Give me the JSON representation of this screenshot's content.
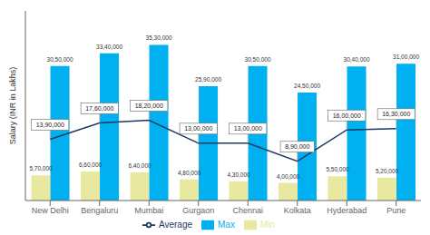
{
  "chart_data": {
    "type": "bar",
    "ylabel": "Salary (INR in Lakhs)",
    "categories": [
      "New Delhi",
      "Bengaluru",
      "Mumbai",
      "Gurgaon",
      "Chennai",
      "Kolkata",
      "Hyderabad",
      "Pune"
    ],
    "series": [
      {
        "name": "Min",
        "type": "bar",
        "color": "#e8e8a0",
        "values": [
          570000,
          660000,
          640000,
          480000,
          430000,
          400000,
          550000,
          520000
        ],
        "value_labels": [
          "5,70,000",
          "6,60,000",
          "6,40,000",
          "4,80,000",
          "4,30,000",
          "4,00,000",
          "5,50,000",
          "5,20,000"
        ]
      },
      {
        "name": "Max",
        "type": "bar",
        "color": "#00b0f0",
        "values": [
          3050000,
          3340000,
          3530000,
          2590000,
          3050000,
          2450000,
          3040000,
          3100000
        ],
        "value_labels": [
          "30,50,000",
          "33,40,000",
          "35,30,000",
          "25,90,000",
          "30,50,000",
          "24,50,000",
          "30,40,000",
          "31,00,000"
        ]
      },
      {
        "name": "Average",
        "type": "line",
        "color": "#1f3864",
        "values": [
          1390000,
          1760000,
          1820000,
          1300000,
          1300000,
          890000,
          1600000,
          1630000
        ],
        "value_labels": [
          "13,90,000",
          "17,60,000",
          "18,20,000",
          "13,00,000",
          "13,00,000",
          "8,90,000",
          "16,00,000",
          "16,30,000"
        ]
      }
    ],
    "ylim": [
      0,
      4300000
    ],
    "yticks": [
      0,
      500000,
      1000000,
      1500000,
      2000000,
      2500000,
      3000000,
      3500000,
      4000000
    ],
    "tick_labels": "x",
    "data_labels": true,
    "grid": false,
    "legend": "bottom"
  }
}
